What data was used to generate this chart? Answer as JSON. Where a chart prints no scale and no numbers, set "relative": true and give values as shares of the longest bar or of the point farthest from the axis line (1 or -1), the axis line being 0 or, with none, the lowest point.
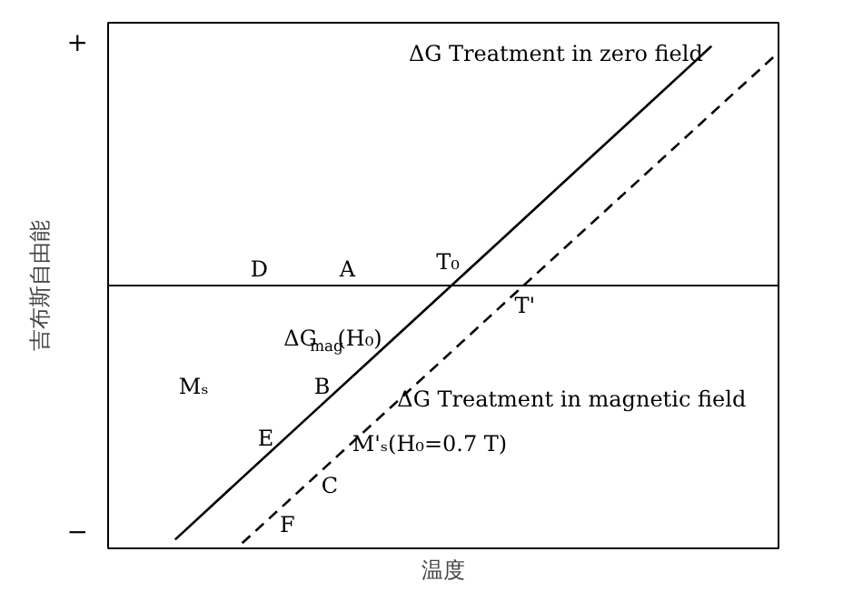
{
  "chart_data": {
    "type": "line",
    "xlabel": "温度",
    "ylabel": "吉布斯自由能",
    "relative": true,
    "categories": [
      null,
      null,
      null,
      null,
      null,
      null,
      null,
      null,
      null,
      null
    ],
    "marker": "none",
    "series": [
      {
        "color": "#000000",
        "line_style": "solid",
        "values": [
          -0.986,
          -0.746,
          -0.507,
          -0.268,
          -0.029,
          0.21,
          0.45,
          0.689,
          0.929,
          null
        ]
      },
      {
        "color": "#000000",
        "line_style": "dashed",
        "values": [
          null,
          -1,
          -0.762,
          -0.524,
          -0.286,
          -0.047,
          0.191,
          0.429,
          0.667,
          0.905
        ]
      }
    ],
    "annotations": [
      "+",
      "−",
      "ΔG Treatment in zero field",
      "D",
      "A",
      "T₀",
      "T'",
      "ΔG$_{mag}$(H₀)",
      "Mₛ",
      "B",
      "E",
      "ΔG Treatment in magnetic field",
      "M'ₛ(H₀=0.7 T)",
      "C",
      "F"
    ]
  }
}
